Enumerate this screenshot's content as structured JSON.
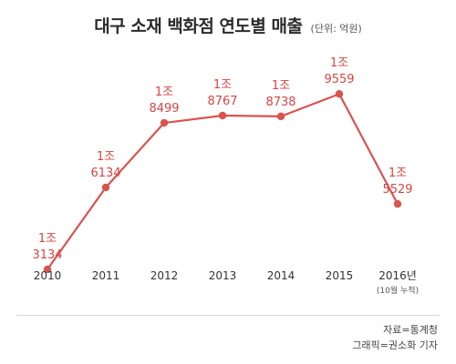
{
  "header": {
    "title": "대구 소재 백화점 연도별 매출",
    "unit": "(단위: 억원)"
  },
  "footer": {
    "source": "자료=통계청",
    "graphic": "그래픽=권소화 기자"
  },
  "colors": {
    "series": "#d9534f",
    "label": "#d64541",
    "axis_text": "#333333"
  },
  "chart_data": {
    "type": "line",
    "title": "대구 소재 백화점 연도별 매출",
    "subtitle": "(단위: 억원)",
    "categories": [
      "2010",
      "2011",
      "2012",
      "2013",
      "2014",
      "2015",
      "2016년"
    ],
    "category_notes": [
      "",
      "",
      "",
      "",
      "",
      "",
      "(10월 누적)"
    ],
    "values": [
      13134,
      16134,
      18499,
      18767,
      18738,
      19559,
      15529
    ],
    "data_labels": [
      [
        "1조",
        "3134"
      ],
      [
        "1조",
        "6134"
      ],
      [
        "1조",
        "8499"
      ],
      [
        "1조",
        "8767"
      ],
      [
        "1조",
        "8738"
      ],
      [
        "1조",
        "9559"
      ],
      [
        "1조",
        "5529"
      ]
    ],
    "grid": false,
    "ylim": [
      11000,
      21000
    ]
  }
}
